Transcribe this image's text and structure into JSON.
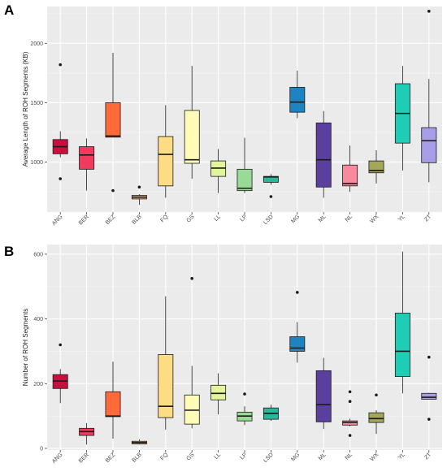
{
  "panels": [
    {
      "letter": "A"
    },
    {
      "letter": "B"
    }
  ],
  "chart_data": [
    {
      "type": "box",
      "ylabel": "Average Length of ROH Segments (KB)",
      "xlabel": "",
      "ylim": [
        580,
        2310
      ],
      "yticks": [
        1000,
        1500,
        2000
      ],
      "categories": [
        "ANG",
        "BER",
        "BEZ",
        "BLB",
        "FQ",
        "GS",
        "LL",
        "LP",
        "LSD",
        "MG",
        "ML",
        "NL",
        "WX",
        "YL",
        "ZT"
      ],
      "colors": [
        "#c8103e",
        "#ef3b5d",
        "#fe6a3a",
        "#f6b36b",
        "#fedc83",
        "#fefcb8",
        "#e3f59c",
        "#98da96",
        "#2ab89b",
        "#1d84c1",
        "#5b3f9f",
        "#f78a9d",
        "#a4a75b",
        "#1fcdb4",
        "#a89ee8"
      ],
      "boxes": [
        {
          "low": 1040,
          "q1": 1070,
          "median": 1130,
          "q3": 1190,
          "high": 1260,
          "outliers": [
            1820,
            860
          ]
        },
        {
          "low": 760,
          "q1": 940,
          "median": 1060,
          "q3": 1130,
          "high": 1200,
          "outliers": []
        },
        {
          "low": 1210,
          "q1": 1210,
          "median": 1220,
          "q3": 1500,
          "high": 1920,
          "outliers": [
            760
          ]
        },
        {
          "low": 640,
          "q1": 690,
          "median": 705,
          "q3": 720,
          "high": 730,
          "outliers": [
            790
          ]
        },
        {
          "low": 700,
          "q1": 800,
          "median": 1065,
          "q3": 1215,
          "high": 1480,
          "outliers": []
        },
        {
          "low": 860,
          "q1": 990,
          "median": 1020,
          "q3": 1435,
          "high": 1810,
          "outliers": []
        },
        {
          "low": 740,
          "q1": 880,
          "median": 950,
          "q3": 1010,
          "high": 1110,
          "outliers": []
        },
        {
          "low": 740,
          "q1": 760,
          "median": 780,
          "q3": 940,
          "high": 1205,
          "outliers": []
        },
        {
          "low": 810,
          "q1": 830,
          "median": 875,
          "q3": 880,
          "high": 900,
          "outliers": [
            710
          ]
        },
        {
          "low": 1370,
          "q1": 1420,
          "median": 1505,
          "q3": 1630,
          "high": 1770,
          "outliers": []
        },
        {
          "low": 700,
          "q1": 790,
          "median": 1020,
          "q3": 1330,
          "high": 1430,
          "outliers": []
        },
        {
          "low": 750,
          "q1": 800,
          "median": 820,
          "q3": 975,
          "high": 1140,
          "outliers": []
        },
        {
          "low": 820,
          "q1": 910,
          "median": 930,
          "q3": 1010,
          "high": 1100,
          "outliers": []
        },
        {
          "low": 930,
          "q1": 1160,
          "median": 1410,
          "q3": 1660,
          "high": 1810,
          "outliers": []
        },
        {
          "low": 830,
          "q1": 995,
          "median": 1180,
          "q3": 1290,
          "high": 1700,
          "outliers": [
            2270
          ]
        }
      ]
    },
    {
      "type": "box",
      "ylabel": "Number of ROH Segments",
      "xlabel": "",
      "ylim": [
        -5,
        630
      ],
      "yticks": [
        0,
        200,
        400,
        600
      ],
      "categories": [
        "ANG",
        "BER",
        "BEZ",
        "BLB",
        "FQ",
        "GS",
        "LL",
        "LP",
        "LSD",
        "MG",
        "ML",
        "NL",
        "WX",
        "YL",
        "ZT"
      ],
      "colors": [
        "#c8103e",
        "#ef3b5d",
        "#fe6a3a",
        "#f6b36b",
        "#fedc83",
        "#fefcb8",
        "#e3f59c",
        "#98da96",
        "#2ab89b",
        "#1d84c1",
        "#5b3f9f",
        "#f78a9d",
        "#a4a75b",
        "#1fcdb4",
        "#a89ee8"
      ],
      "boxes": [
        {
          "low": 140,
          "q1": 185,
          "median": 208,
          "q3": 228,
          "high": 245,
          "outliers": [
            320
          ]
        },
        {
          "low": 12,
          "q1": 40,
          "median": 52,
          "q3": 62,
          "high": 78,
          "outliers": []
        },
        {
          "low": 30,
          "q1": 98,
          "median": 100,
          "q3": 175,
          "high": 268,
          "outliers": []
        },
        {
          "low": 12,
          "q1": 14,
          "median": 18,
          "q3": 22,
          "high": 28,
          "outliers": []
        },
        {
          "low": 58,
          "q1": 95,
          "median": 130,
          "q3": 290,
          "high": 470,
          "outliers": []
        },
        {
          "low": 62,
          "q1": 75,
          "median": 118,
          "q3": 165,
          "high": 255,
          "outliers": [
            525
          ]
        },
        {
          "low": 105,
          "q1": 150,
          "median": 170,
          "q3": 195,
          "high": 232,
          "outliers": []
        },
        {
          "low": 72,
          "q1": 85,
          "median": 100,
          "q3": 112,
          "high": 130,
          "outliers": [
            168
          ]
        },
        {
          "low": 85,
          "q1": 90,
          "median": 108,
          "q3": 125,
          "high": 135,
          "outliers": []
        },
        {
          "low": 265,
          "q1": 300,
          "median": 310,
          "q3": 345,
          "high": 390,
          "outliers": [
            482
          ]
        },
        {
          "low": 60,
          "q1": 82,
          "median": 135,
          "q3": 240,
          "high": 280,
          "outliers": []
        },
        {
          "low": 68,
          "q1": 72,
          "median": 80,
          "q3": 85,
          "high": 92,
          "outliers": [
            175,
            145,
            40
          ]
        },
        {
          "low": 45,
          "q1": 80,
          "median": 92,
          "q3": 110,
          "high": 118,
          "outliers": [
            165
          ]
        },
        {
          "low": 170,
          "q1": 222,
          "median": 300,
          "q3": 418,
          "high": 608,
          "outliers": []
        },
        {
          "low": 152,
          "q1": 152,
          "median": 158,
          "q3": 170,
          "high": 172,
          "outliers": [
            282,
            90
          ]
        }
      ]
    }
  ]
}
